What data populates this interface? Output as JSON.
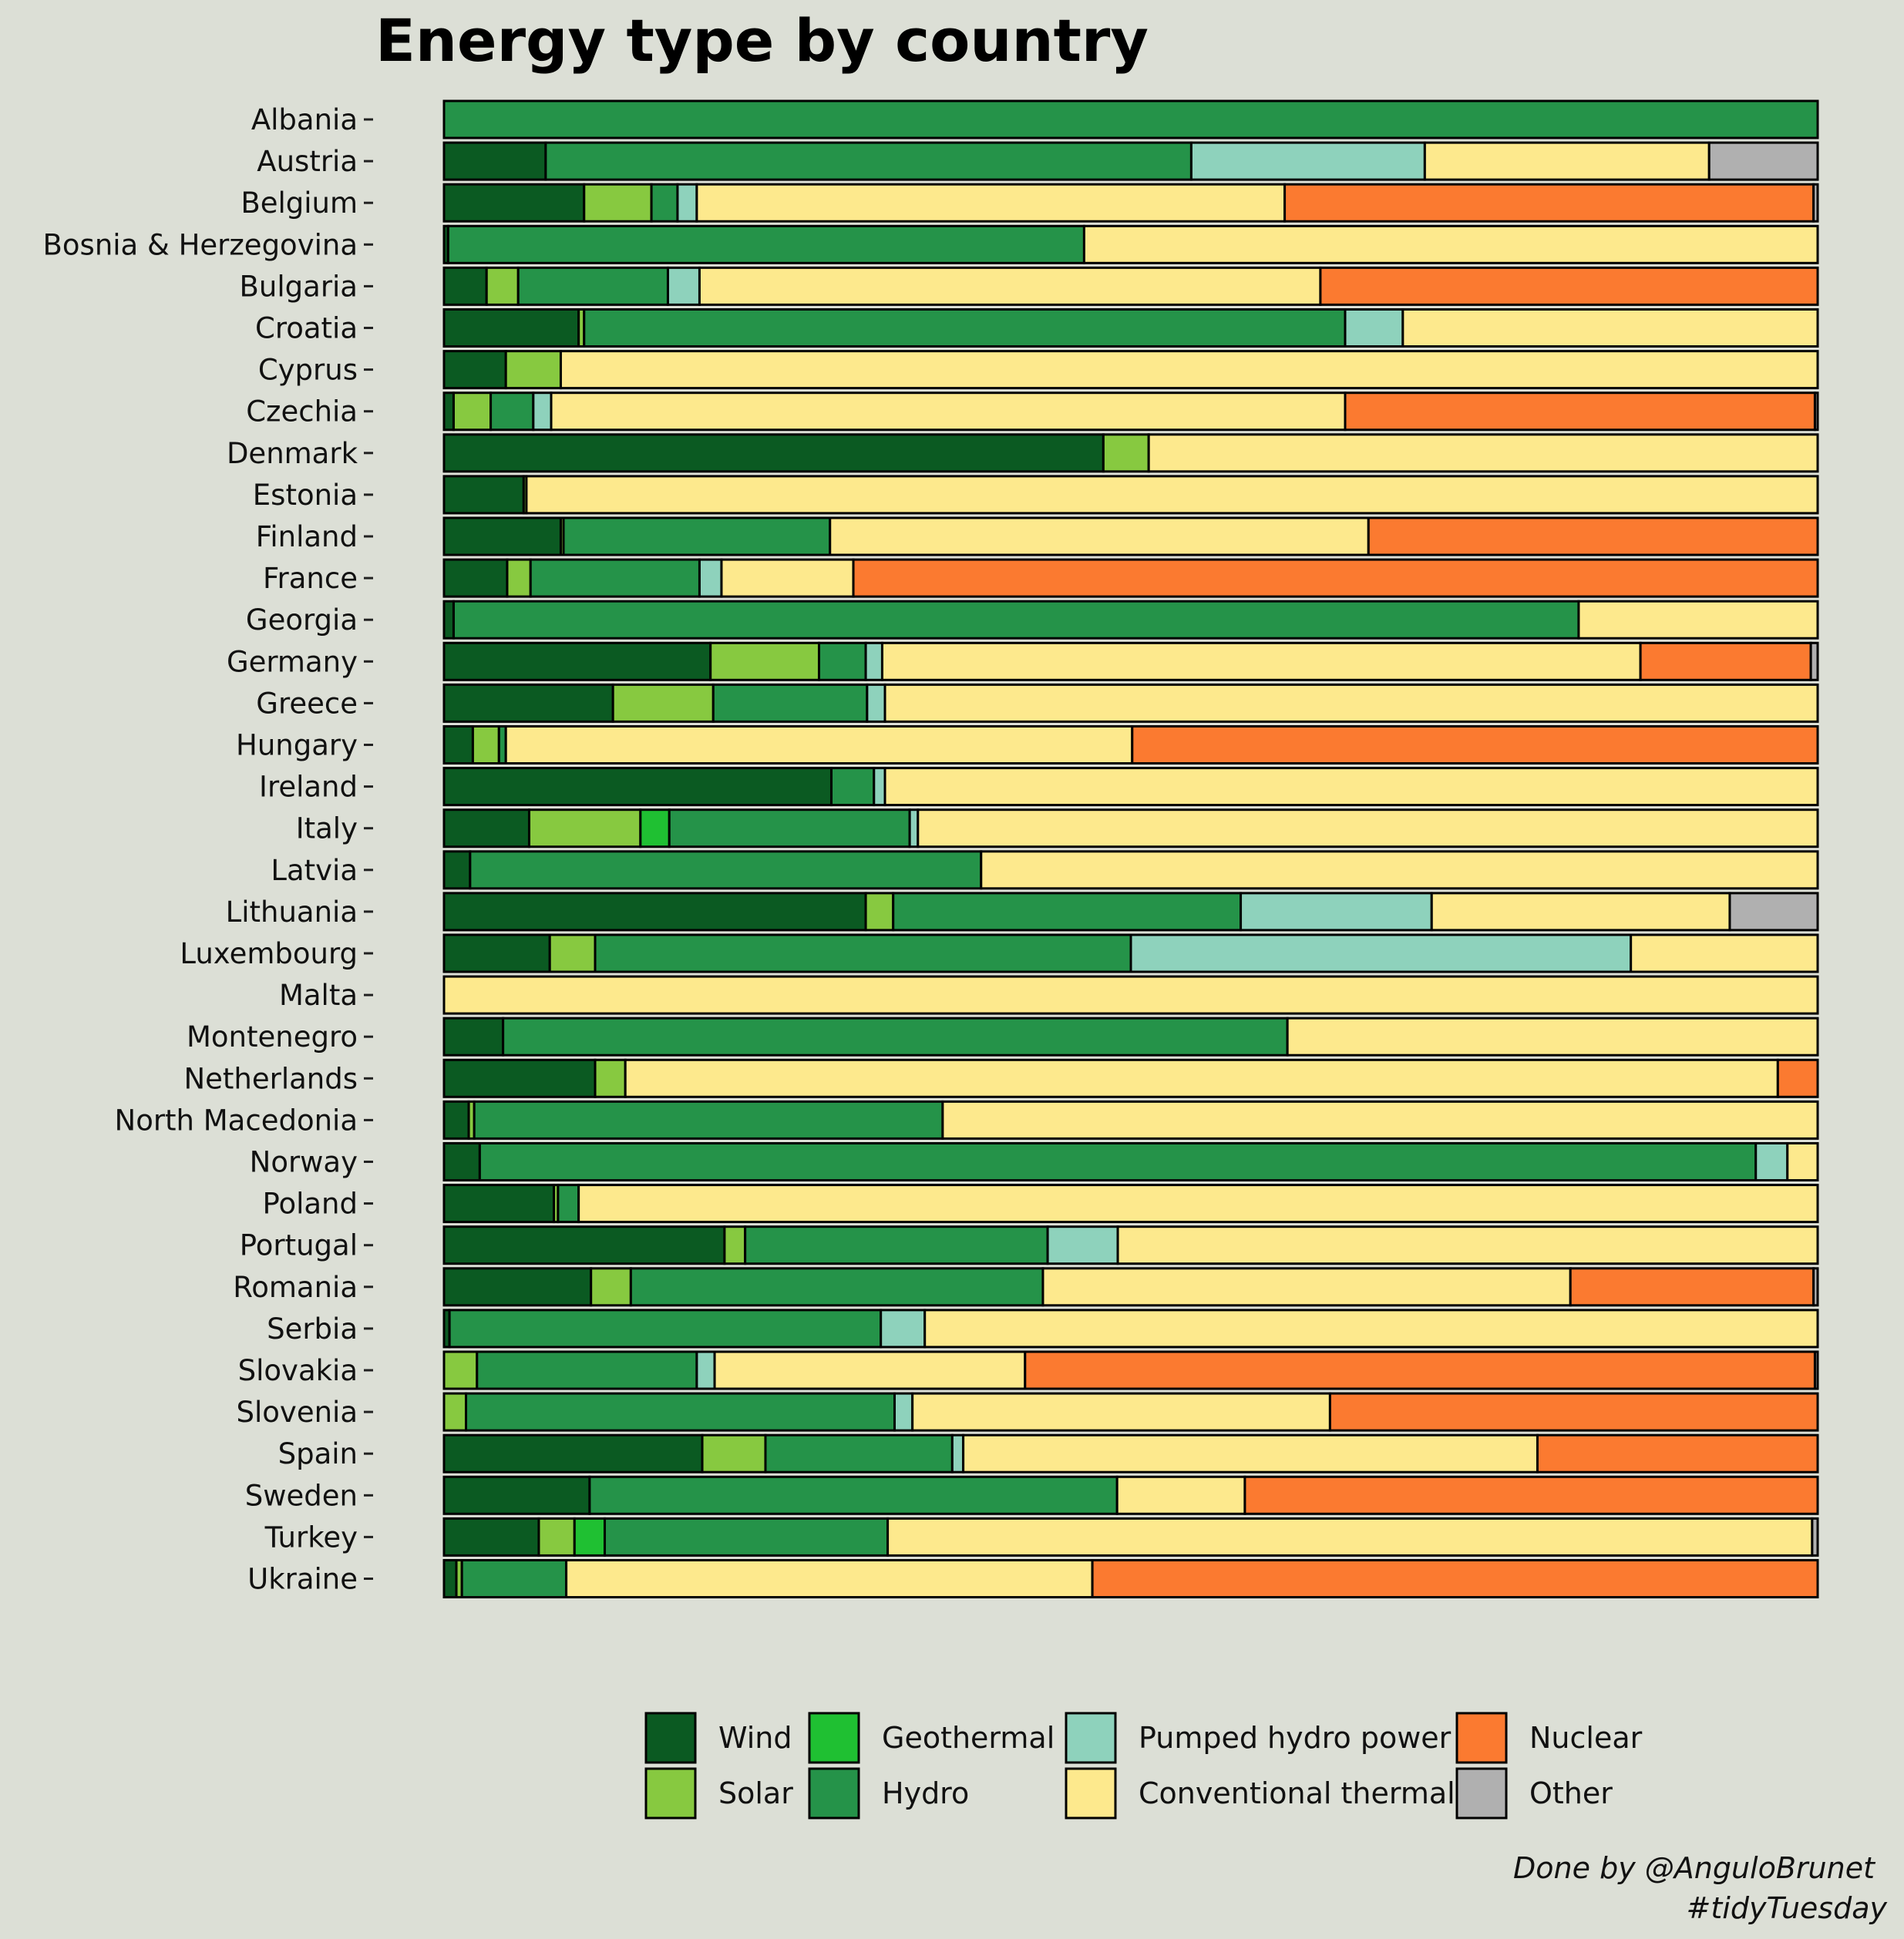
{
  "chart_data": {
    "type": "bar",
    "orientation": "horizontal",
    "stacked": "percent",
    "title": "Energy type by country",
    "xlabel": "",
    "ylabel": "",
    "xlim": [
      0,
      100
    ],
    "grid": false,
    "legend_position": "bottom",
    "categories": [
      "Albania",
      "Austria",
      "Belgium",
      "Bosnia & Herzegovina",
      "Bulgaria",
      "Croatia",
      "Cyprus",
      "Czechia",
      "Denmark",
      "Estonia",
      "Finland",
      "France",
      "Georgia",
      "Germany",
      "Greece",
      "Hungary",
      "Ireland",
      "Italy",
      "Latvia",
      "Lithuania",
      "Luxembourg",
      "Malta",
      "Montenegro",
      "Netherlands",
      "North Macedonia",
      "Norway",
      "Poland",
      "Portugal",
      "Romania",
      "Serbia",
      "Slovakia",
      "Slovenia",
      "Spain",
      "Sweden",
      "Turkey",
      "Ukraine"
    ],
    "series": [
      {
        "name": "Wind",
        "color": "#0b5a22",
        "values": [
          0,
          7.4,
          10.2,
          0.3,
          3.1,
          9.8,
          4.5,
          0.7,
          48,
          5.8,
          8.5,
          4.6,
          0.7,
          19.4,
          12.3,
          2.1,
          28.2,
          6.2,
          1.9,
          30.7,
          7.7,
          0,
          4.3,
          11,
          1.8,
          2.6,
          8,
          20.4,
          10.7,
          0.4,
          0,
          0,
          18.8,
          10.6,
          6.9,
          0.9
        ]
      },
      {
        "name": "Solar",
        "color": "#87c940",
        "values": [
          0,
          0,
          4.9,
          0,
          2.3,
          0.4,
          4,
          2.7,
          3.3,
          0.2,
          0.2,
          1.7,
          0,
          7.9,
          7.3,
          1.9,
          0,
          8.1,
          0,
          2,
          3.3,
          0,
          0,
          2.2,
          0.4,
          0,
          0.3,
          1.5,
          2.9,
          0,
          2.4,
          1.6,
          4.6,
          0,
          2.6,
          0.4
        ]
      },
      {
        "name": "Geothermal",
        "color": "#1fc032",
        "values": [
          0,
          0,
          0,
          0,
          0,
          0,
          0,
          0,
          0,
          0,
          0,
          0,
          0,
          0,
          0,
          0,
          0,
          2.1,
          0,
          0,
          0,
          0,
          0,
          0,
          0,
          0,
          0,
          0,
          0,
          0,
          0,
          0,
          0,
          0,
          2.2,
          0
        ]
      },
      {
        "name": "Hydro",
        "color": "#259349",
        "values": [
          100,
          47,
          1.9,
          46.3,
          10.9,
          55.4,
          0,
          3.1,
          0,
          0,
          19.4,
          12.3,
          81.9,
          3.4,
          11.2,
          0.5,
          3.1,
          17.5,
          37.2,
          25.3,
          39,
          0,
          57.1,
          0,
          34.1,
          92.8,
          1.5,
          22,
          30,
          31.4,
          16,
          31.2,
          13.6,
          38.4,
          20.6,
          7.6
        ]
      },
      {
        "name": "Pumped hydro power",
        "color": "#8ed2bc",
        "values": [
          0,
          17,
          1.4,
          0,
          2.3,
          4.2,
          0,
          1.3,
          0,
          0,
          0,
          1.6,
          0,
          1.2,
          1.3,
          0,
          0.8,
          0.6,
          0,
          13.9,
          36.4,
          0,
          0,
          0,
          0,
          2.3,
          0,
          5.1,
          0,
          3.2,
          1.3,
          1.3,
          0.8,
          0,
          0,
          0
        ]
      },
      {
        "name": "Conventional thermal",
        "color": "#fde98d",
        "values": [
          0,
          20.7,
          42.8,
          53.4,
          45.2,
          30.2,
          91.5,
          57.8,
          48.7,
          94,
          39.2,
          9.6,
          17.4,
          55.2,
          67.9,
          45.6,
          67.9,
          65.5,
          60.9,
          21.7,
          13.6,
          100,
          38.6,
          83.9,
          63.7,
          2.2,
          90.2,
          50.9,
          38.4,
          65,
          22.6,
          30.4,
          41.8,
          9.3,
          67.3,
          38.3
        ]
      },
      {
        "name": "Nuclear",
        "color": "#fb7a30",
        "values": [
          0,
          0,
          38.5,
          0,
          36.2,
          0,
          0,
          34.2,
          0,
          0,
          32.7,
          70.2,
          0,
          12.4,
          0,
          49.9,
          0,
          0,
          0,
          0,
          0,
          0,
          0,
          2.9,
          0,
          0,
          0,
          0,
          17.7,
          0,
          57.5,
          35.5,
          20.4,
          41.7,
          0,
          52.8
        ]
      },
      {
        "name": "Other",
        "color": "#b0b0b0",
        "values": [
          0,
          7.9,
          0.3,
          0,
          0,
          0,
          0,
          0.2,
          0,
          0,
          0,
          0,
          0,
          0.5,
          0,
          0,
          0,
          0,
          0,
          6.4,
          0,
          0,
          0,
          0,
          0,
          0,
          0,
          0,
          0.3,
          0,
          0.2,
          0,
          0,
          0,
          0.4,
          0
        ]
      }
    ]
  },
  "caption": {
    "line1": "Done by @AnguloBrunet",
    "line2": "#tidyTuesday"
  }
}
